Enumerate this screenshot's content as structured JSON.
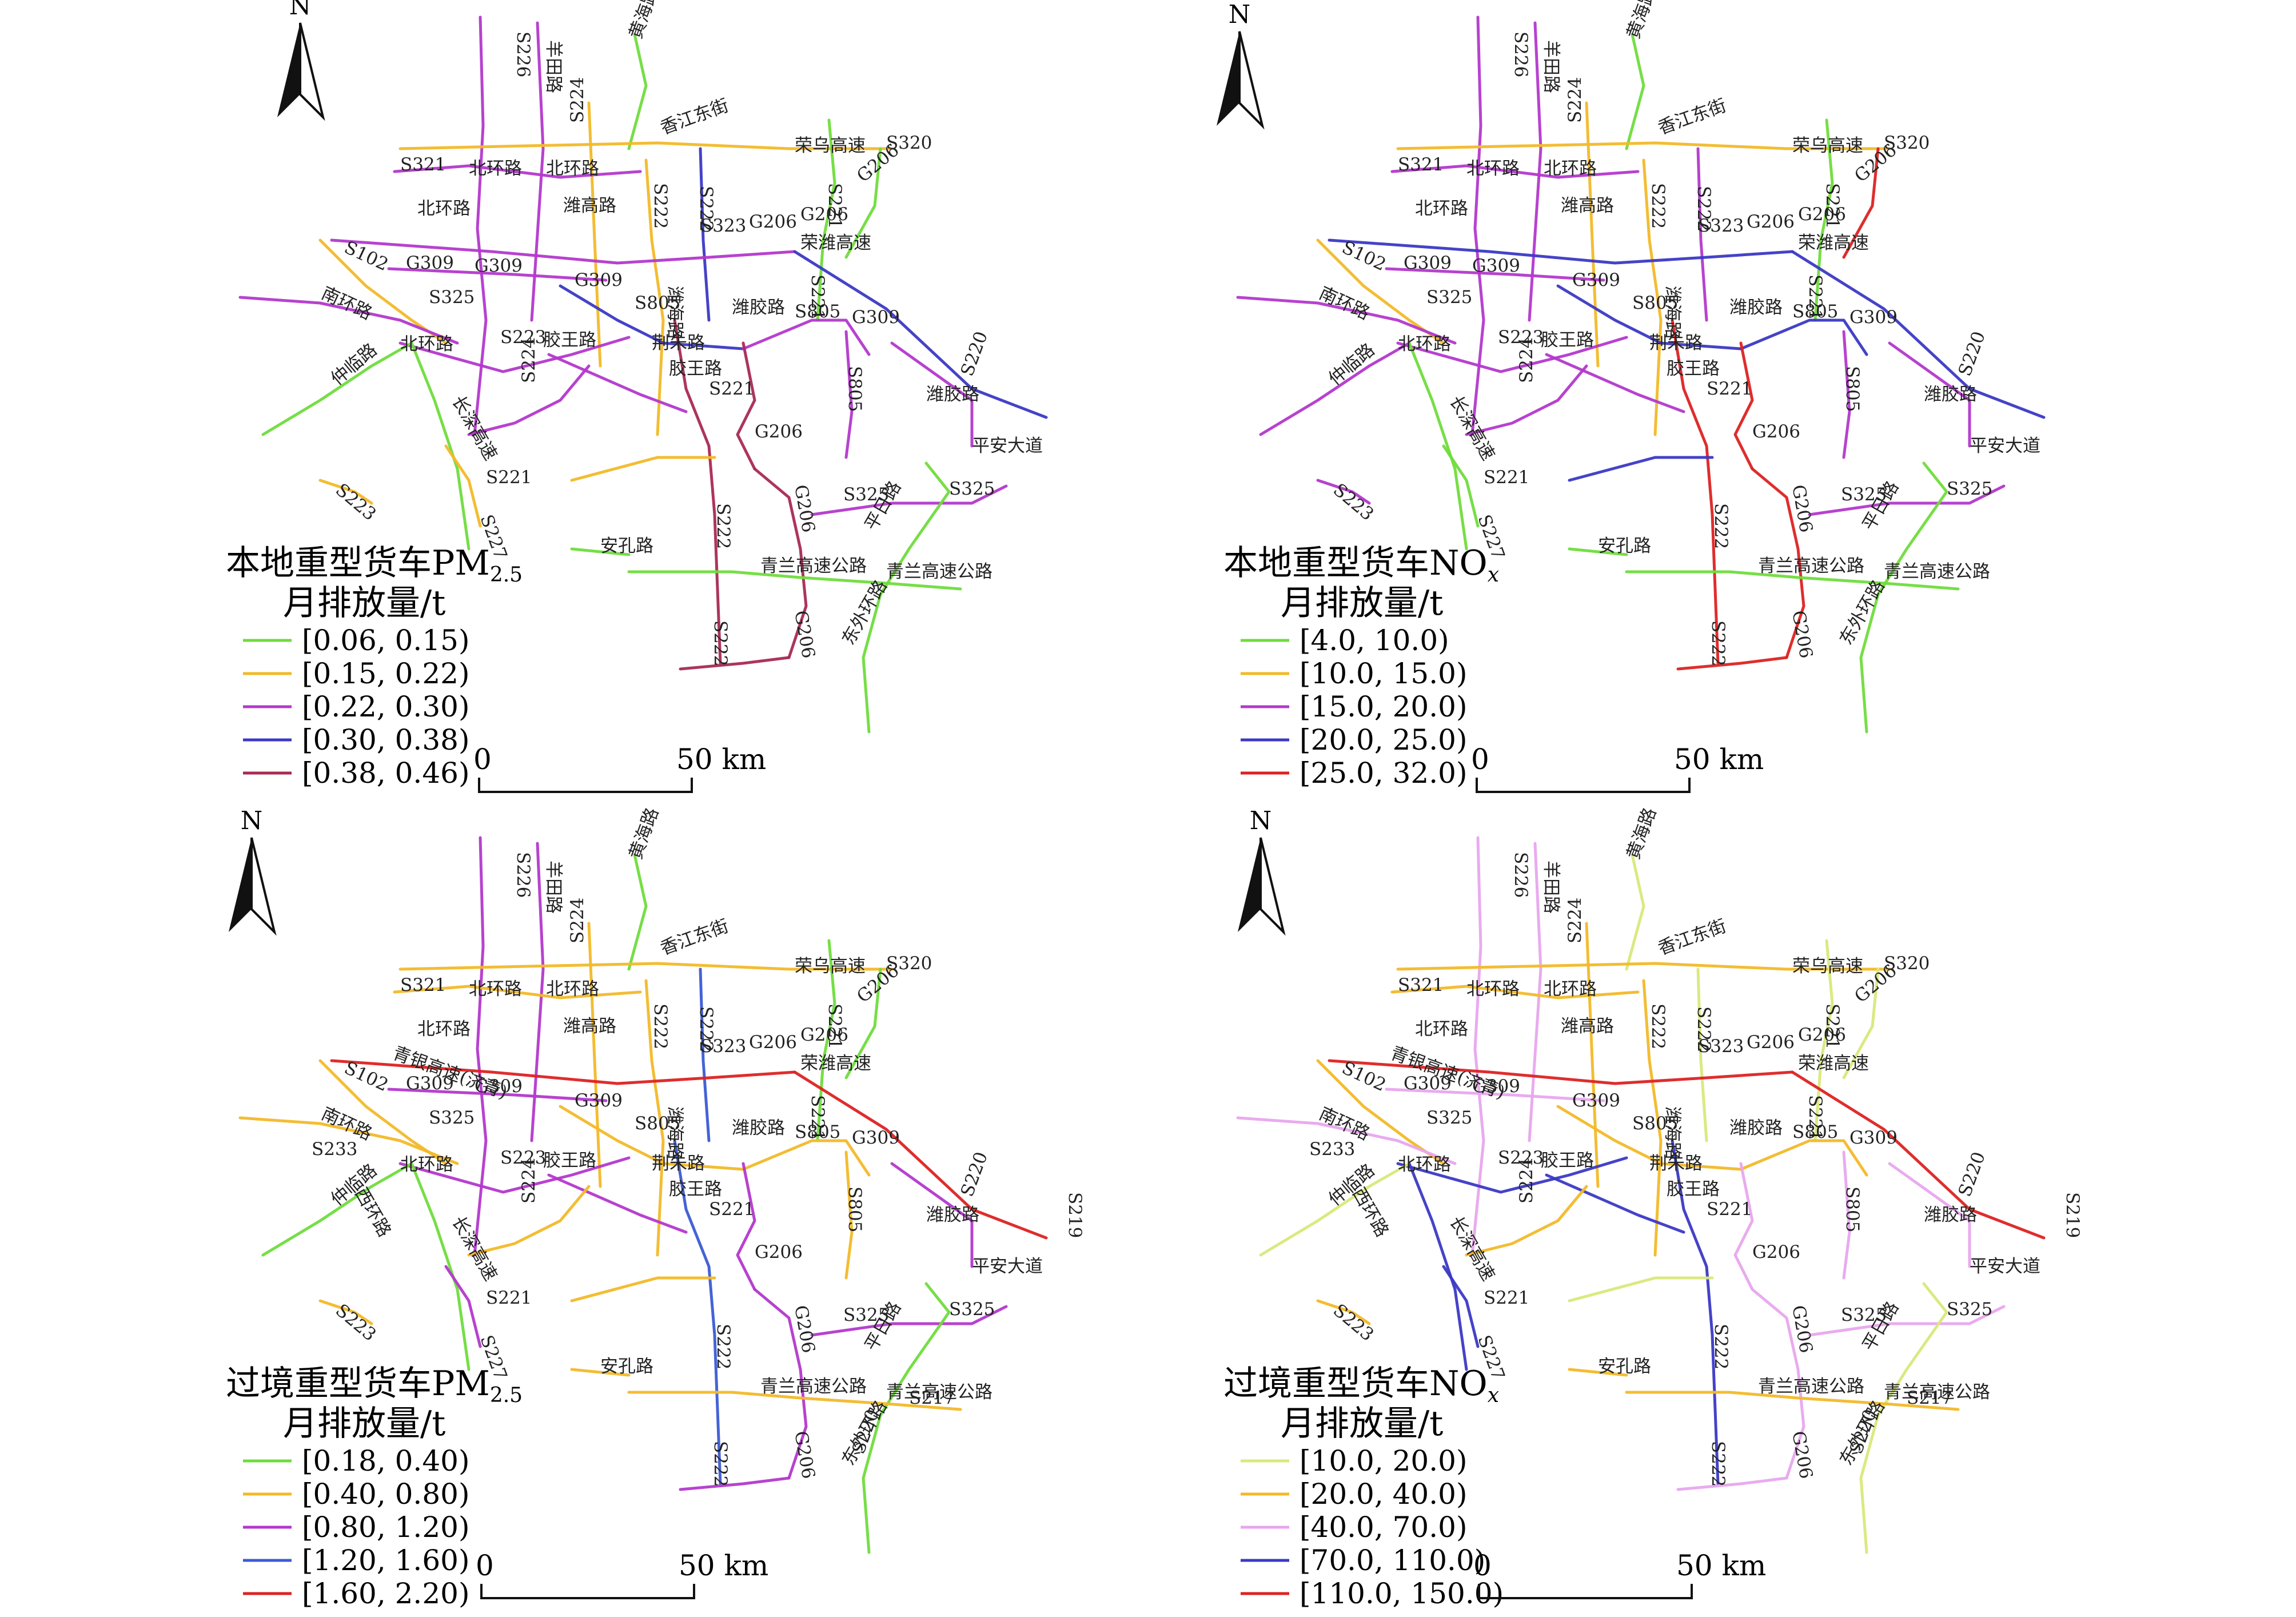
{
  "north_label": "N",
  "scale_bar": {
    "start": "0",
    "end": "50 km"
  },
  "panels": [
    {
      "title_line1": "本地重型货车PM",
      "title_sub": "2.5",
      "title_line2": "月排放量/t",
      "legend": [
        {
          "label": "[0.06, 0.15)",
          "color": "#6fdc3c"
        },
        {
          "label": "[0.15, 0.22)",
          "color": "#f2b928"
        },
        {
          "label": "[0.22, 0.30)",
          "color": "#b338cc"
        },
        {
          "label": "[0.30, 0.38)",
          "color": "#3b39c4"
        },
        {
          "label": "[0.38, 0.46)",
          "color": "#a82a52"
        }
      ]
    },
    {
      "title_line1": "本地重型货车NO",
      "title_sub": "x",
      "title_line2": "月排放量/t",
      "legend": [
        {
          "label": "[4.0, 10.0)",
          "color": "#6fdc3c"
        },
        {
          "label": "[10.0, 15.0)",
          "color": "#f2b928"
        },
        {
          "label": "[15.0, 20.0)",
          "color": "#b338cc"
        },
        {
          "label": "[20.0, 25.0)",
          "color": "#3b39c4"
        },
        {
          "label": "[25.0, 32.0)",
          "color": "#dd2222"
        }
      ]
    },
    {
      "title_line1": "过境重型货车PM",
      "title_sub": "2.5",
      "title_line2": "月排放量/t",
      "legend": [
        {
          "label": "[0.18, 0.40)",
          "color": "#6fdc3c"
        },
        {
          "label": "[0.40, 0.80)",
          "color": "#f2b928"
        },
        {
          "label": "[0.80, 1.20)",
          "color": "#b338cc"
        },
        {
          "label": "[1.20, 1.60)",
          "color": "#3b5bd4"
        },
        {
          "label": "[1.60, 2.20)",
          "color": "#dd2222"
        }
      ]
    },
    {
      "title_line1": "过境重型货车NO",
      "title_sub": "x",
      "title_line2": "月排放量/t",
      "legend": [
        {
          "label": "[10.0, 20.0)",
          "color": "#d9e87a"
        },
        {
          "label": "[20.0, 40.0)",
          "color": "#f2b928"
        },
        {
          "label": "[40.0, 70.0)",
          "color": "#e8a6ee"
        },
        {
          "label": "[70.0, 110.0)",
          "color": "#3b39c4"
        },
        {
          "label": "[110.0, 150.0)",
          "color": "#dd2222"
        }
      ]
    }
  ],
  "road_labels_common": [
    "S226",
    "羊田路",
    "黄海路",
    "S224",
    "香江东街",
    "荣乌高速",
    "S320",
    "S321",
    "北环路",
    "北环路",
    "潍高路",
    "S222",
    "S222",
    "S221",
    "G206",
    "北环路",
    "S323",
    "G206",
    "G206",
    "荣潍高速",
    "S102",
    "G309",
    "G309",
    "G309",
    "S221",
    "南环路",
    "S325",
    "S805",
    "潍海路",
    "潍胶路",
    "S805",
    "G309",
    "北环路",
    "S223",
    "胶王路",
    "荆朱路",
    "S224",
    "S221",
    "胶王路",
    "S805",
    "S220",
    "仲临路",
    "长深高速",
    "潍胶路",
    "平安大道",
    "S223",
    "S221",
    "S227",
    "S222",
    "G206",
    "G206",
    "S325",
    "S325",
    "平日路",
    "安孔路",
    "青兰高速公路",
    "青兰高速公路",
    "S222",
    "G206",
    "东外环路"
  ],
  "road_labels_transit_extra": [
    "青银高速(济青)",
    "S233",
    "西环路",
    "S219",
    "S217",
    "S220"
  ]
}
